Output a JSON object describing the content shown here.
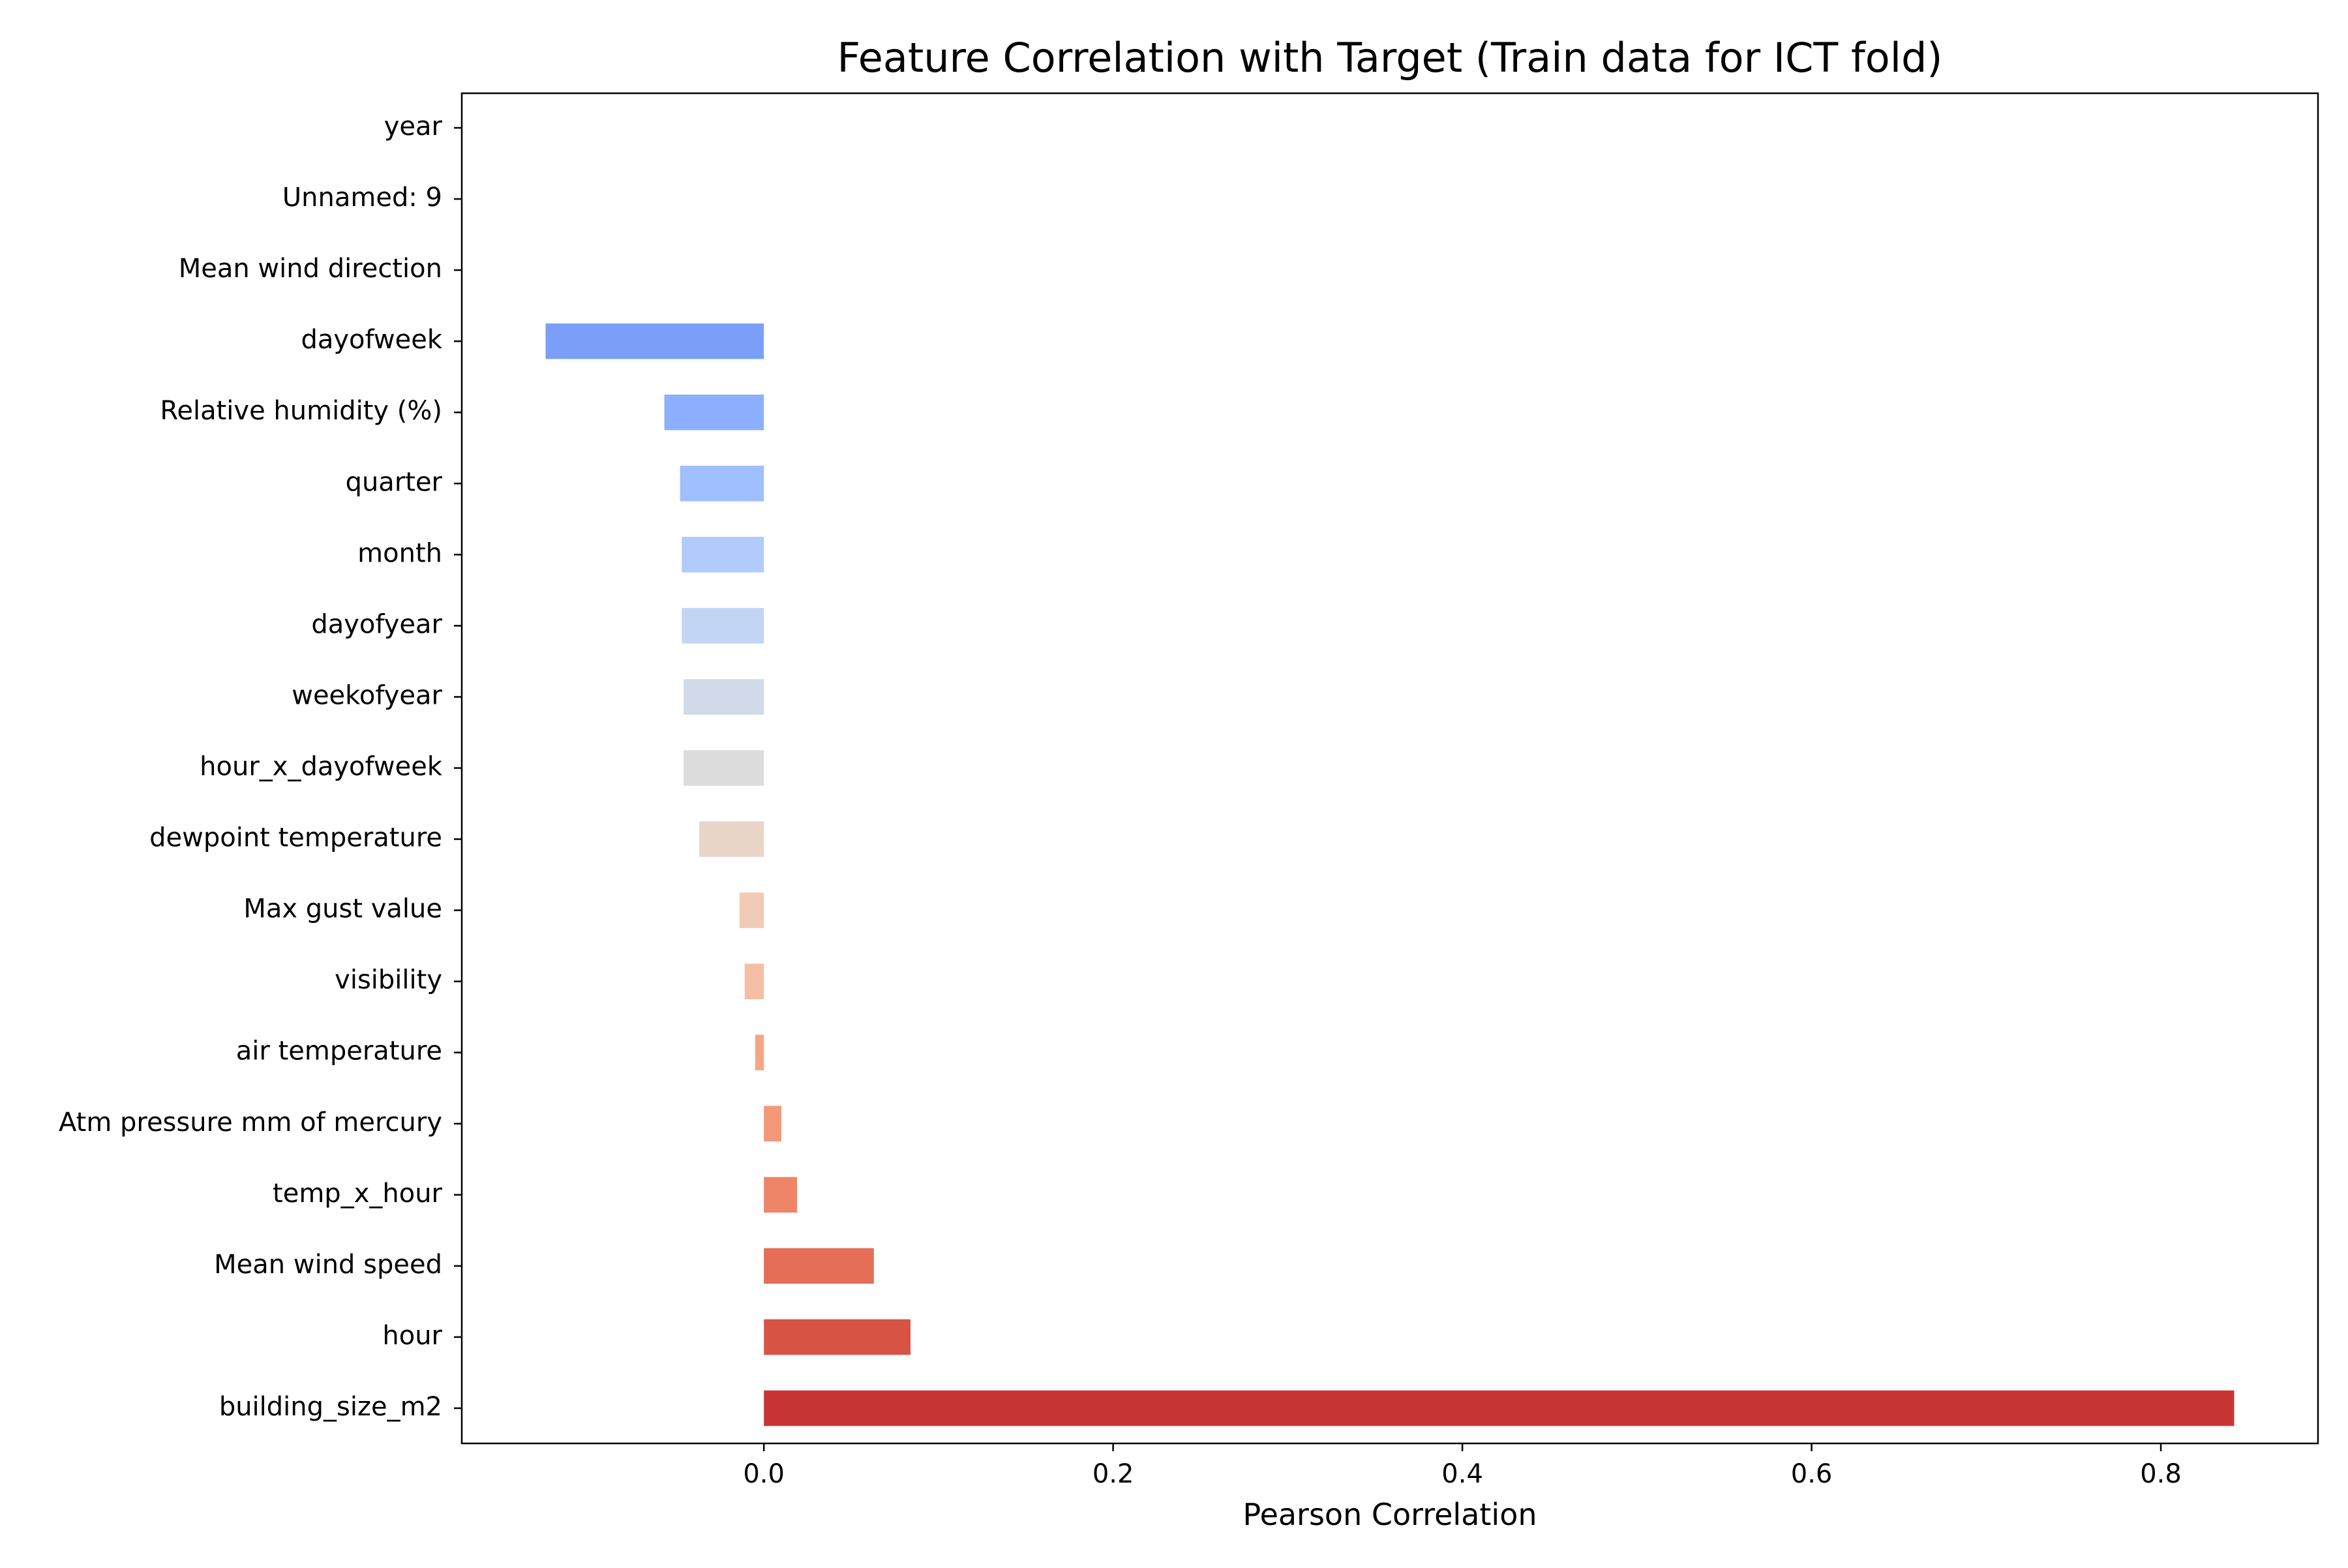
{
  "chart_data": {
    "type": "bar",
    "orientation": "horizontal",
    "title": "Feature Correlation with Target (Train data for ICT fold)",
    "xlabel": "Pearson Correlation",
    "ylabel": "",
    "xlim": [
      -0.173,
      0.89
    ],
    "xticks": [
      0.0,
      0.2,
      0.4,
      0.6,
      0.8
    ],
    "xtick_labels": [
      "0.0",
      "0.2",
      "0.4",
      "0.6",
      "0.8"
    ],
    "grid": false,
    "legend": "none",
    "categories": [
      "year",
      "Unnamed: 9",
      "Mean wind direction",
      "dayofweek",
      "Relative humidity (%)",
      "quarter",
      "month",
      "dayofyear",
      "weekofyear",
      "hour_x_dayofweek",
      "dewpoint temperature",
      "Max gust value",
      "visibility",
      "air temperature",
      "Atm pressure mm of mercury",
      "temp_x_hour",
      "Mean wind speed",
      "hour",
      "building_size_m2"
    ],
    "values": [
      null,
      null,
      null,
      -0.125,
      -0.057,
      -0.048,
      -0.047,
      -0.047,
      -0.046,
      -0.046,
      -0.037,
      -0.014,
      -0.011,
      -0.005,
      0.01,
      0.019,
      0.063,
      0.084,
      0.842
    ],
    "colors": [
      "#3b4cc0",
      "#3b4cc0",
      "#3b4cc0",
      "#7b9ff9",
      "#8caffe",
      "#9fbfff",
      "#b1cbfc",
      "#c3d5f4",
      "#d1dae9",
      "#dddcdc",
      "#ead5c9",
      "#f2cbb7",
      "#f5bfa5",
      "#f6a586",
      "#f4987a",
      "#ee8468",
      "#e46e56",
      "#d75445",
      "#c73635"
    ]
  }
}
